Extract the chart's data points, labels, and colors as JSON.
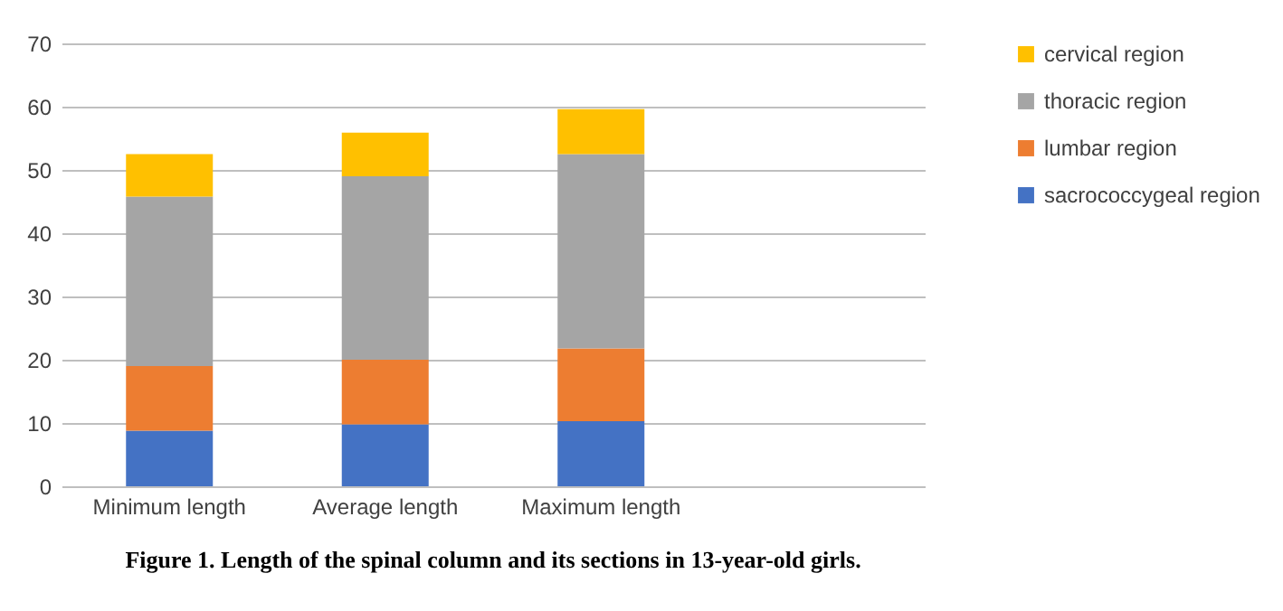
{
  "chart_data": {
    "type": "bar",
    "stacked": true,
    "title": "Figure 1. Length of the spinal column and its sections in 13-year-old girls.",
    "categories": [
      "Minimum length",
      "Average length",
      "Maximum length",
      null
    ],
    "series": [
      {
        "name": "sacrococcygeal region",
        "color": "#4472c4",
        "values": [
          8.8,
          9.8,
          10.3,
          null
        ]
      },
      {
        "name": "lumbar region",
        "color": "#ed7d31",
        "values": [
          10.2,
          10.2,
          11.5,
          null
        ]
      },
      {
        "name": "thoracic region",
        "color": "#a5a5a5",
        "values": [
          26.8,
          29.0,
          30.7,
          null
        ]
      },
      {
        "name": "cervical region",
        "color": "#ffc000",
        "values": [
          6.7,
          6.9,
          7.1,
          null
        ]
      }
    ],
    "ylim": [
      0,
      70
    ],
    "yticks": [
      0,
      10,
      20,
      30,
      40,
      50,
      60,
      70
    ],
    "grid": "y",
    "legend": "right"
  }
}
